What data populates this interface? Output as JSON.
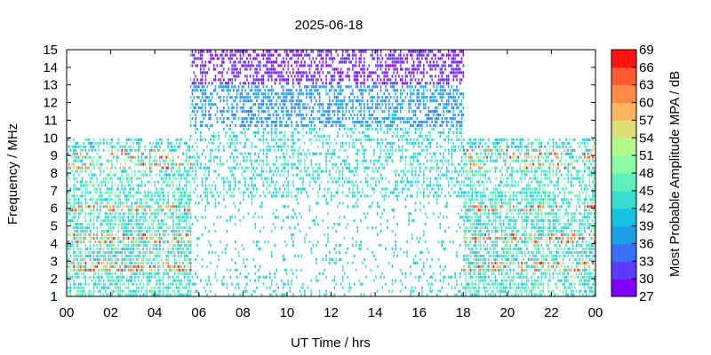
{
  "chart_data": {
    "type": "heatmap",
    "title": "2025-06-18",
    "xlabel": "UT Time / hrs",
    "ylabel": "Frequency / MHz",
    "xlim": [
      0,
      24
    ],
    "ylim": [
      1,
      15
    ],
    "x_ticks": [
      "00",
      "02",
      "04",
      "06",
      "08",
      "10",
      "12",
      "14",
      "16",
      "18",
      "20",
      "22",
      "00"
    ],
    "y_ticks": [
      "1",
      "2",
      "3",
      "4",
      "5",
      "6",
      "7",
      "8",
      "9",
      "10",
      "11",
      "12",
      "13",
      "14",
      "15"
    ],
    "colorbar": {
      "label": "Most Probable Amplitude MPA / dB",
      "range": [
        27,
        69
      ],
      "ticks": [
        "27",
        "30",
        "33",
        "36",
        "39",
        "42",
        "45",
        "48",
        "51",
        "54",
        "57",
        "60",
        "63",
        "66",
        "69"
      ],
      "colors": [
        "#7f00ff",
        "#5a3cfd",
        "#3a72f5",
        "#1ea0e8",
        "#16c4e0",
        "#3adbd2",
        "#60efbc",
        "#8cfba4",
        "#b4f88c",
        "#dade77",
        "#fdb462",
        "#ff8a48",
        "#ff5a30",
        "#ff1414"
      ]
    },
    "regions": [
      {
        "name": "",
        "x": [
          0,
          5.6
        ],
        "ymax": 10
      },
      {
        "name": "",
        "x": [
          5.6,
          18
        ],
        "ymax": 15
      },
      {
        "name": "",
        "x": [
          18,
          24
        ],
        "ymax": 10
      }
    ]
  }
}
